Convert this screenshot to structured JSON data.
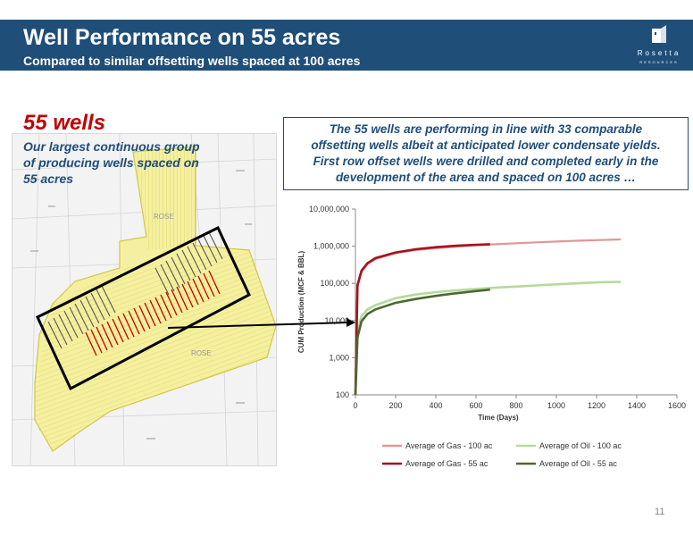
{
  "header": {
    "title": "Well Performance on 55 acres",
    "subtitle": "Compared to similar offsetting wells spaced at 100 acres"
  },
  "logo": {
    "name": "Rosetta",
    "sub": "RESOURCES"
  },
  "left_panel": {
    "title": "55 wells",
    "desc_lines": [
      "Our largest continuous group",
      "of producing wells spaced on",
      "55 acres"
    ]
  },
  "callout": {
    "lines": [
      "The 55 wells are performing in line with 33 comparable",
      "offsetting wells albeit at anticipated lower condensate yields.",
      "First row offset wells were drilled and completed early in the",
      "development of the area and spaced on 100 acres …"
    ]
  },
  "map": {
    "labels": [
      "ROSE",
      "ROSE"
    ],
    "colors": {
      "lease": "#f5f0a0",
      "lease_line": "#d2c74a",
      "wells_100": "#555555",
      "wells_55": "#c00000",
      "highlight": "#000000"
    }
  },
  "chart_data": {
    "type": "line",
    "title": "",
    "xlabel": "Time (Days)",
    "ylabel": "CUM Production (MCF & BBL)",
    "xlim": [
      0,
      1600
    ],
    "ylim": [
      100,
      10000000
    ],
    "yscale": "log",
    "x_ticks": [
      "0",
      "200",
      "400",
      "600",
      "800",
      "1000",
      "1200",
      "1400",
      "1600"
    ],
    "y_ticks": [
      "10,000,000",
      "1,000,000",
      "100,000",
      "10,000",
      "1,000",
      "100"
    ],
    "legend_position": "bottom",
    "series": [
      {
        "name": "Average of Gas - 100 ac",
        "color": "#e39596",
        "points": [
          [
            0,
            100
          ],
          [
            10,
            80000
          ],
          [
            30,
            200000
          ],
          [
            60,
            330000
          ],
          [
            100,
            450000
          ],
          [
            200,
            650000
          ],
          [
            300,
            790000
          ],
          [
            400,
            880000
          ],
          [
            500,
            970000
          ],
          [
            600,
            1050000
          ],
          [
            700,
            1130000
          ],
          [
            800,
            1200000
          ],
          [
            900,
            1270000
          ],
          [
            1000,
            1330000
          ],
          [
            1100,
            1400000
          ],
          [
            1200,
            1460000
          ],
          [
            1320,
            1520000
          ]
        ]
      },
      {
        "name": "Average of Oil - 100 ac",
        "color": "#b5d99c",
        "points": [
          [
            0,
            100
          ],
          [
            10,
            5000
          ],
          [
            30,
            13000
          ],
          [
            60,
            20000
          ],
          [
            100,
            26000
          ],
          [
            200,
            40000
          ],
          [
            300,
            50000
          ],
          [
            400,
            58000
          ],
          [
            500,
            65000
          ],
          [
            600,
            71000
          ],
          [
            700,
            77000
          ],
          [
            800,
            82000
          ],
          [
            900,
            88000
          ],
          [
            1000,
            94000
          ],
          [
            1100,
            100000
          ],
          [
            1200,
            106000
          ],
          [
            1320,
            110000
          ]
        ]
      },
      {
        "name": "Average of Gas - 55 ac",
        "color": "#a3141c",
        "points": [
          [
            0,
            100
          ],
          [
            10,
            90000
          ],
          [
            30,
            220000
          ],
          [
            60,
            350000
          ],
          [
            100,
            480000
          ],
          [
            200,
            680000
          ],
          [
            300,
            830000
          ],
          [
            400,
            940000
          ],
          [
            500,
            1030000
          ],
          [
            600,
            1090000
          ],
          [
            670,
            1130000
          ]
        ]
      },
      {
        "name": "Average of Oil - 55 ac",
        "color": "#4a6930",
        "points": [
          [
            0,
            100
          ],
          [
            10,
            3500
          ],
          [
            30,
            9500
          ],
          [
            60,
            15000
          ],
          [
            100,
            20000
          ],
          [
            200,
            30000
          ],
          [
            300,
            38000
          ],
          [
            400,
            46000
          ],
          [
            500,
            54000
          ],
          [
            600,
            62000
          ],
          [
            670,
            68000
          ]
        ]
      }
    ]
  },
  "page_number": "11"
}
